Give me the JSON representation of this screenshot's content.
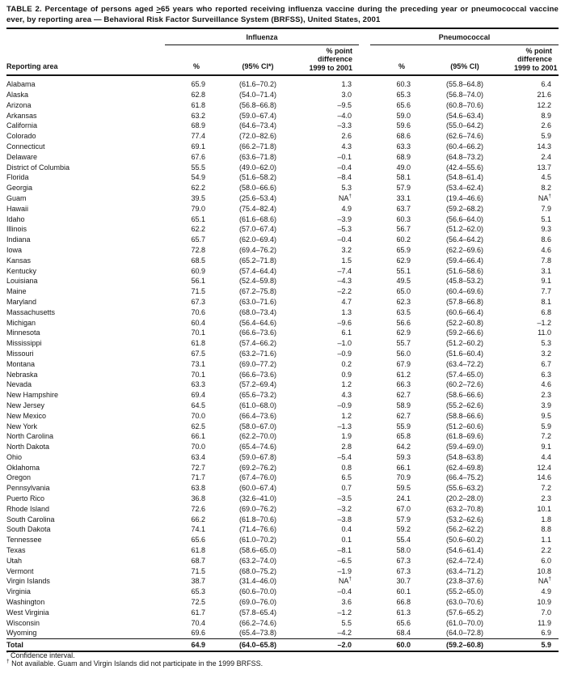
{
  "title": {
    "pre": "TABLE 2. Percentage of persons aged ",
    "geq": ">",
    "post": "65 years who reported receiving influenza vaccine during the preceding year or pneumococcal vaccine ever, by reporting area — Behavioral Risk Factor Surveillance System (BRFSS), United States, 2001"
  },
  "table": {
    "group_headers": [
      "Influenza",
      "Pneumococcal"
    ],
    "columns": {
      "area": "Reporting area",
      "flu_pct": "%",
      "flu_ci": "(95% CI*)",
      "flu_diff": [
        "% point",
        "difference",
        "1999 to 2001"
      ],
      "pn_pct": "%",
      "pn_ci": "(95% CI)",
      "pn_diff": [
        "% point",
        "difference",
        "1999 to 2001"
      ]
    },
    "rows": [
      {
        "area": "Alabama",
        "flu_pct": "65.9",
        "flu_ci": "(61.6–70.2)",
        "flu_diff": "1.3",
        "pn_pct": "60.3",
        "pn_ci": "(55.8–64.8)",
        "pn_diff": "6.4"
      },
      {
        "area": "Alaska",
        "flu_pct": "62.8",
        "flu_ci": "(54.0–71.4)",
        "flu_diff": "3.0",
        "pn_pct": "65.3",
        "pn_ci": "(56.8–74.0)",
        "pn_diff": "21.6"
      },
      {
        "area": "Arizona",
        "flu_pct": "61.8",
        "flu_ci": "(56.8–66.8)",
        "flu_diff": "–9.5",
        "pn_pct": "65.6",
        "pn_ci": "(60.8–70.6)",
        "pn_diff": "12.2"
      },
      {
        "area": "Arkansas",
        "flu_pct": "63.2",
        "flu_ci": "(59.0–67.4)",
        "flu_diff": "–4.0",
        "pn_pct": "59.0",
        "pn_ci": "(54.6–63.4)",
        "pn_diff": "8.9"
      },
      {
        "area": "California",
        "flu_pct": "68.9",
        "flu_ci": "(64.6–73.4)",
        "flu_diff": "–3.3",
        "pn_pct": "59.6",
        "pn_ci": "(55.0–64.2)",
        "pn_diff": "2.6"
      },
      {
        "area": "Colorado",
        "flu_pct": "77.4",
        "flu_ci": "(72.0–82.6)",
        "flu_diff": "2.6",
        "pn_pct": "68.6",
        "pn_ci": "(62.6–74.6)",
        "pn_diff": "5.9"
      },
      {
        "area": "Connecticut",
        "flu_pct": "69.1",
        "flu_ci": "(66.2–71.8)",
        "flu_diff": "4.3",
        "pn_pct": "63.3",
        "pn_ci": "(60.4–66.2)",
        "pn_diff": "14.3"
      },
      {
        "area": "Delaware",
        "flu_pct": "67.6",
        "flu_ci": "(63.6–71.8)",
        "flu_diff": "–0.1",
        "pn_pct": "68.9",
        "pn_ci": "(64.8–73.2)",
        "pn_diff": "2.4"
      },
      {
        "area": "District of Columbia",
        "flu_pct": "55.5",
        "flu_ci": "(49.0–62.0)",
        "flu_diff": "–0.4",
        "pn_pct": "49.0",
        "pn_ci": "(42.4–55.6)",
        "pn_diff": "13.7"
      },
      {
        "area": "Florida",
        "flu_pct": "54.9",
        "flu_ci": "(51.6–58.2)",
        "flu_diff": "–8.4",
        "pn_pct": "58.1",
        "pn_ci": "(54.8–61.4)",
        "pn_diff": "4.5"
      },
      {
        "area": "Georgia",
        "flu_pct": "62.2",
        "flu_ci": "(58.0–66.6)",
        "flu_diff": "5.3",
        "pn_pct": "57.9",
        "pn_ci": "(53.4–62.4)",
        "pn_diff": "8.2"
      },
      {
        "area": "Guam",
        "flu_pct": "39.5",
        "flu_ci": "(25.6–53.4)",
        "flu_diff": "NA†",
        "pn_pct": "33.1",
        "pn_ci": "(19.4–46.6)",
        "pn_diff": "NA†"
      },
      {
        "area": "Hawaii",
        "flu_pct": "79.0",
        "flu_ci": "(75.4–82.4)",
        "flu_diff": "4.9",
        "pn_pct": "63.7",
        "pn_ci": "(59.2–68.2)",
        "pn_diff": "7.9"
      },
      {
        "area": "Idaho",
        "flu_pct": "65.1",
        "flu_ci": "(61.6–68.6)",
        "flu_diff": "–3.9",
        "pn_pct": "60.3",
        "pn_ci": "(56.6–64.0)",
        "pn_diff": "5.1"
      },
      {
        "area": "Illinois",
        "flu_pct": "62.2",
        "flu_ci": "(57.0–67.4)",
        "flu_diff": "–5.3",
        "pn_pct": "56.7",
        "pn_ci": "(51.2–62.0)",
        "pn_diff": "9.3"
      },
      {
        "area": "Indiana",
        "flu_pct": "65.7",
        "flu_ci": "(62.0–69.4)",
        "flu_diff": "–0.4",
        "pn_pct": "60.2",
        "pn_ci": "(56.4–64.2)",
        "pn_diff": "8.6"
      },
      {
        "area": "Iowa",
        "flu_pct": "72.8",
        "flu_ci": "(69.4–76.2)",
        "flu_diff": "3.2",
        "pn_pct": "65.9",
        "pn_ci": "(62.2–69.6)",
        "pn_diff": "4.6"
      },
      {
        "area": "Kansas",
        "flu_pct": "68.5",
        "flu_ci": "(65.2–71.8)",
        "flu_diff": "1.5",
        "pn_pct": "62.9",
        "pn_ci": "(59.4–66.4)",
        "pn_diff": "7.8"
      },
      {
        "area": "Kentucky",
        "flu_pct": "60.9",
        "flu_ci": "(57.4–64.4)",
        "flu_diff": "–7.4",
        "pn_pct": "55.1",
        "pn_ci": "(51.6–58.6)",
        "pn_diff": "3.1"
      },
      {
        "area": "Louisiana",
        "flu_pct": "56.1",
        "flu_ci": "(52.4–59.8)",
        "flu_diff": "–4.3",
        "pn_pct": "49.5",
        "pn_ci": "(45.8–53.2)",
        "pn_diff": "9.1"
      },
      {
        "area": "Maine",
        "flu_pct": "71.5",
        "flu_ci": "(67.2–75.8)",
        "flu_diff": "–2.2",
        "pn_pct": "65.0",
        "pn_ci": "(60.4–69.6)",
        "pn_diff": "7.7"
      },
      {
        "area": "Maryland",
        "flu_pct": "67.3",
        "flu_ci": "(63.0–71.6)",
        "flu_diff": "4.7",
        "pn_pct": "62.3",
        "pn_ci": "(57.8–66.8)",
        "pn_diff": "8.1"
      },
      {
        "area": "Massachusetts",
        "flu_pct": "70.6",
        "flu_ci": "(68.0–73.4)",
        "flu_diff": "1.3",
        "pn_pct": "63.5",
        "pn_ci": "(60.6–66.4)",
        "pn_diff": "6.8"
      },
      {
        "area": "Michigan",
        "flu_pct": "60.4",
        "flu_ci": "(56.4–64.6)",
        "flu_diff": "–9.6",
        "pn_pct": "56.6",
        "pn_ci": "(52.2–60.8)",
        "pn_diff": "–1.2"
      },
      {
        "area": "Minnesota",
        "flu_pct": "70.1",
        "flu_ci": "(66.6–73.6)",
        "flu_diff": "6.1",
        "pn_pct": "62.9",
        "pn_ci": "(59.2–66.6)",
        "pn_diff": "11.0"
      },
      {
        "area": "Mississippi",
        "flu_pct": "61.8",
        "flu_ci": "(57.4–66.2)",
        "flu_diff": "–1.0",
        "pn_pct": "55.7",
        "pn_ci": "(51.2–60.2)",
        "pn_diff": "5.3"
      },
      {
        "area": "Missouri",
        "flu_pct": "67.5",
        "flu_ci": "(63.2–71.6)",
        "flu_diff": "–0.9",
        "pn_pct": "56.0",
        "pn_ci": "(51.6–60.4)",
        "pn_diff": "3.2"
      },
      {
        "area": "Montana",
        "flu_pct": "73.1",
        "flu_ci": "(69.0–77.2)",
        "flu_diff": "0.2",
        "pn_pct": "67.9",
        "pn_ci": "(63.4–72.2)",
        "pn_diff": "6.7"
      },
      {
        "area": "Nebraska",
        "flu_pct": "70.1",
        "flu_ci": "(66.6–73.6)",
        "flu_diff": "0.9",
        "pn_pct": "61.2",
        "pn_ci": "(57.4–65.0)",
        "pn_diff": "6.3"
      },
      {
        "area": "Nevada",
        "flu_pct": "63.3",
        "flu_ci": "(57.2–69.4)",
        "flu_diff": "1.2",
        "pn_pct": "66.3",
        "pn_ci": "(60.2–72.6)",
        "pn_diff": "4.6"
      },
      {
        "area": "New Hampshire",
        "flu_pct": "69.4",
        "flu_ci": "(65.6–73.2)",
        "flu_diff": "4.3",
        "pn_pct": "62.7",
        "pn_ci": "(58.6–66.6)",
        "pn_diff": "2.3"
      },
      {
        "area": "New Jersey",
        "flu_pct": "64.5",
        "flu_ci": "(61.0–68.0)",
        "flu_diff": "–0.9",
        "pn_pct": "58.9",
        "pn_ci": "(55.2–62.6)",
        "pn_diff": "3.9"
      },
      {
        "area": "New Mexico",
        "flu_pct": "70.0",
        "flu_ci": "(66.4–73.6)",
        "flu_diff": "1.2",
        "pn_pct": "62.7",
        "pn_ci": "(58.8–66.6)",
        "pn_diff": "9.5"
      },
      {
        "area": "New York",
        "flu_pct": "62.5",
        "flu_ci": "(58.0–67.0)",
        "flu_diff": "–1.3",
        "pn_pct": "55.9",
        "pn_ci": "(51.2–60.6)",
        "pn_diff": "5.9"
      },
      {
        "area": "North Carolina",
        "flu_pct": "66.1",
        "flu_ci": "(62.2–70.0)",
        "flu_diff": "1.9",
        "pn_pct": "65.8",
        "pn_ci": "(61.8–69.6)",
        "pn_diff": "7.2"
      },
      {
        "area": "North Dakota",
        "flu_pct": "70.0",
        "flu_ci": "(65.4–74.6)",
        "flu_diff": "2.8",
        "pn_pct": "64.2",
        "pn_ci": "(59.4–69.0)",
        "pn_diff": "9.1"
      },
      {
        "area": "Ohio",
        "flu_pct": "63.4",
        "flu_ci": "(59.0–67.8)",
        "flu_diff": "–5.4",
        "pn_pct": "59.3",
        "pn_ci": "(54.8–63.8)",
        "pn_diff": "4.4"
      },
      {
        "area": "Oklahoma",
        "flu_pct": "72.7",
        "flu_ci": "(69.2–76.2)",
        "flu_diff": "0.8",
        "pn_pct": "66.1",
        "pn_ci": "(62.4–69.8)",
        "pn_diff": "12.4"
      },
      {
        "area": "Oregon",
        "flu_pct": "71.7",
        "flu_ci": "(67.4–76.0)",
        "flu_diff": "6.5",
        "pn_pct": "70.9",
        "pn_ci": "(66.4–75.2)",
        "pn_diff": "14.6"
      },
      {
        "area": "Pennsylvania",
        "flu_pct": "63.8",
        "flu_ci": "(60.0–67.4)",
        "flu_diff": "0.7",
        "pn_pct": "59.5",
        "pn_ci": "(55.6–63.2)",
        "pn_diff": "7.2"
      },
      {
        "area": "Puerto Rico",
        "flu_pct": "36.8",
        "flu_ci": "(32.6–41.0)",
        "flu_diff": "–3.5",
        "pn_pct": "24.1",
        "pn_ci": "(20.2–28.0)",
        "pn_diff": "2.3"
      },
      {
        "area": "Rhode Island",
        "flu_pct": "72.6",
        "flu_ci": "(69.0–76.2)",
        "flu_diff": "–3.2",
        "pn_pct": "67.0",
        "pn_ci": "(63.2–70.8)",
        "pn_diff": "10.1"
      },
      {
        "area": "South Carolina",
        "flu_pct": "66.2",
        "flu_ci": "(61.8–70.6)",
        "flu_diff": "–3.8",
        "pn_pct": "57.9",
        "pn_ci": "(53.2–62.6)",
        "pn_diff": "1.8"
      },
      {
        "area": "South Dakota",
        "flu_pct": "74.1",
        "flu_ci": "(71.4–76.6)",
        "flu_diff": "0.4",
        "pn_pct": "59.2",
        "pn_ci": "(56.2–62.2)",
        "pn_diff": "8.8"
      },
      {
        "area": "Tennessee",
        "flu_pct": "65.6",
        "flu_ci": "(61.0–70.2)",
        "flu_diff": "0.1",
        "pn_pct": "55.4",
        "pn_ci": "(50.6–60.2)",
        "pn_diff": "1.1"
      },
      {
        "area": "Texas",
        "flu_pct": "61.8",
        "flu_ci": "(58.6–65.0)",
        "flu_diff": "–8.1",
        "pn_pct": "58.0",
        "pn_ci": "(54.6–61.4)",
        "pn_diff": "2.2"
      },
      {
        "area": "Utah",
        "flu_pct": "68.7",
        "flu_ci": "(63.2–74.0)",
        "flu_diff": "–6.5",
        "pn_pct": "67.3",
        "pn_ci": "(62.4–72.4)",
        "pn_diff": "6.0"
      },
      {
        "area": "Vermont",
        "flu_pct": "71.5",
        "flu_ci": "(68.0–75.2)",
        "flu_diff": "–1.9",
        "pn_pct": "67.3",
        "pn_ci": "(63.4–71.2)",
        "pn_diff": "10.8"
      },
      {
        "area": "Virgin Islands",
        "flu_pct": "38.7",
        "flu_ci": "(31.4–46.0)",
        "flu_diff": "NA†",
        "pn_pct": "30.7",
        "pn_ci": "(23.8–37.6)",
        "pn_diff": "NA†"
      },
      {
        "area": "Virginia",
        "flu_pct": "65.3",
        "flu_ci": "(60.6–70.0)",
        "flu_diff": "–0.4",
        "pn_pct": "60.1",
        "pn_ci": "(55.2–65.0)",
        "pn_diff": "4.9"
      },
      {
        "area": "Washington",
        "flu_pct": "72.5",
        "flu_ci": "(69.0–76.0)",
        "flu_diff": "3.6",
        "pn_pct": "66.8",
        "pn_ci": "(63.0–70.6)",
        "pn_diff": "10.9"
      },
      {
        "area": "West Virginia",
        "flu_pct": "61.7",
        "flu_ci": "(57.8–65.4)",
        "flu_diff": "–1.2",
        "pn_pct": "61.3",
        "pn_ci": "(57.6–65.2)",
        "pn_diff": "7.0"
      },
      {
        "area": "Wisconsin",
        "flu_pct": "70.4",
        "flu_ci": "(66.2–74.6)",
        "flu_diff": "5.5",
        "pn_pct": "65.6",
        "pn_ci": "(61.0–70.0)",
        "pn_diff": "11.9"
      },
      {
        "area": "Wyoming",
        "flu_pct": "69.6",
        "flu_ci": "(65.4–73.8)",
        "flu_diff": "–4.2",
        "pn_pct": "68.4",
        "pn_ci": "(64.0–72.8)",
        "pn_diff": "6.9"
      }
    ],
    "total": {
      "area": "Total",
      "flu_pct": "64.9",
      "flu_ci": "(64.0–65.8)",
      "flu_diff": "–2.0",
      "pn_pct": "60.0",
      "pn_ci": "(59.2–60.8)",
      "pn_diff": "5.9"
    }
  },
  "footnotes": [
    {
      "marker": "*",
      "text": "Confidence interval."
    },
    {
      "marker": "†",
      "text": "Not available. Guam and Virgin Islands did not participate in the 1999 BRFSS."
    }
  ]
}
